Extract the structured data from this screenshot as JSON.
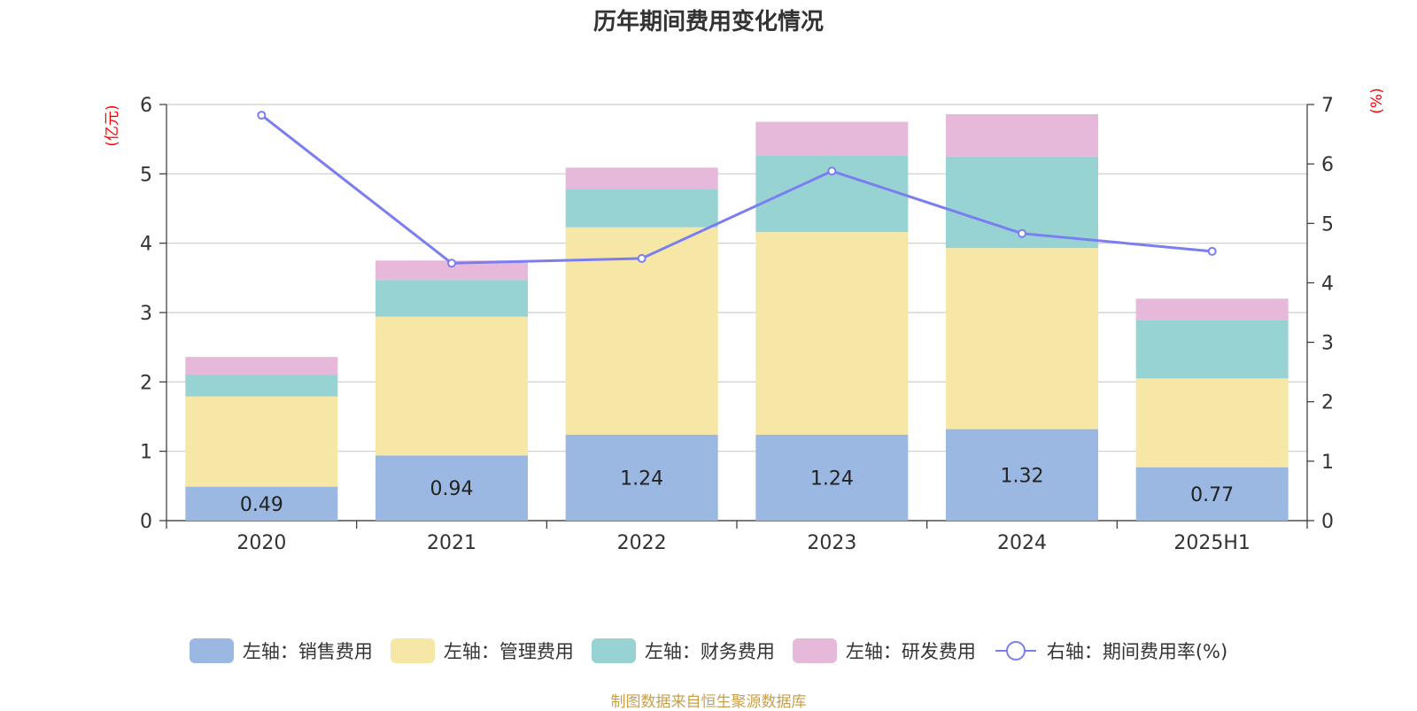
{
  "chart_data": {
    "type": "bar",
    "stacked": true,
    "title": "历年期间费用变化情况",
    "categories": [
      "2020",
      "2021",
      "2022",
      "2023",
      "2024",
      "2025H1"
    ],
    "left_axis": {
      "label": "(亿元)",
      "ylim": [
        0,
        6
      ],
      "ticks": [
        "0",
        "1",
        "2",
        "3",
        "4",
        "5",
        "6"
      ]
    },
    "right_axis": {
      "label": "(%)",
      "ylim": [
        0,
        7
      ],
      "ticks": [
        "0",
        "1",
        "2",
        "3",
        "4",
        "5",
        "6",
        "7"
      ]
    },
    "grid": true,
    "legend_position": "bottom",
    "series": [
      {
        "name": "左轴：销售费用",
        "axis": "left",
        "color": "#9bb8e2",
        "values": [
          0.49,
          0.94,
          1.24,
          1.24,
          1.32,
          0.77
        ],
        "show_labels": true
      },
      {
        "name": "左轴：管理费用",
        "axis": "left",
        "color": "#f7e7a7",
        "values": [
          1.3,
          2.0,
          2.99,
          2.92,
          2.61,
          1.28
        ]
      },
      {
        "name": "左轴：财务费用",
        "axis": "left",
        "color": "#97d3d3",
        "values": [
          0.31,
          0.53,
          0.55,
          1.1,
          1.32,
          0.84
        ]
      },
      {
        "name": "左轴：研发费用",
        "axis": "left",
        "color": "#e6b9da",
        "values": [
          0.26,
          0.28,
          0.31,
          0.49,
          0.61,
          0.31
        ]
      },
      {
        "name": "右轴：期间费用率(%)",
        "axis": "right",
        "type": "line",
        "color": "#7b7ef0",
        "values": [
          6.82,
          4.33,
          4.41,
          5.88,
          4.83,
          4.53
        ]
      }
    ]
  },
  "source_text": "制图数据来自恒生聚源数据库"
}
